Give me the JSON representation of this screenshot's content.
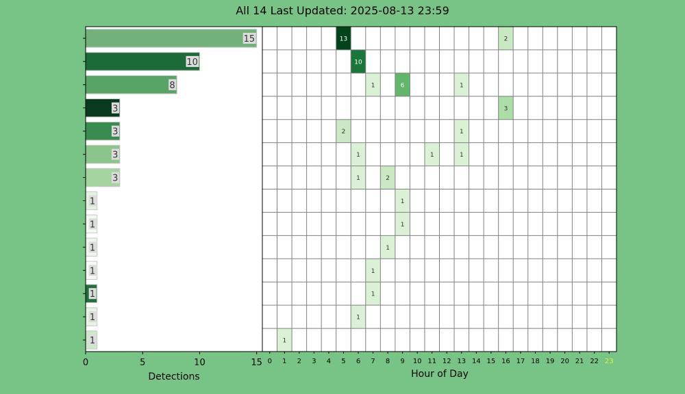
{
  "title": "All 14 Last Updated: 2025-08-13 23:59",
  "colors": {
    "background": "#77c486",
    "highlight_tick": "#d4f542",
    "grid": "#808080"
  },
  "chart_data": [
    {
      "type": "bar",
      "orientation": "horizontal",
      "xlabel": "Detections",
      "xlim": [
        0,
        15.5
      ],
      "xticks": [
        0,
        5,
        10,
        15
      ],
      "values": [
        15,
        10,
        8,
        3,
        3,
        3,
        3,
        1,
        1,
        1,
        1,
        1,
        1,
        1
      ],
      "bar_colors": [
        "#72b27a",
        "#1b6b39",
        "#58a466",
        "#083a1e",
        "#3a8b4f",
        "#8cc58c",
        "#a6d4a0",
        "#e4f3df",
        "#f3faf0",
        "#eef8ea",
        "#f5fbf2",
        "#1f6f3c",
        "#e8f5e4",
        "#cde9c7"
      ],
      "data_labels": [
        "15",
        "10",
        "8",
        "3",
        "3",
        "3",
        "3",
        "1",
        "1",
        "1",
        "1",
        "1",
        "1",
        "1"
      ]
    },
    {
      "type": "heatmap",
      "xlabel": "Hour of Day",
      "x": [
        0,
        1,
        2,
        3,
        4,
        5,
        6,
        7,
        8,
        9,
        10,
        11,
        12,
        13,
        14,
        15,
        16,
        17,
        18,
        19,
        20,
        21,
        22,
        23
      ],
      "x_tick_labels": [
        "0",
        "1",
        "2",
        "3",
        "4",
        "5",
        "6",
        "7",
        "8",
        "9",
        "10",
        "11",
        "12",
        "13",
        "14",
        "15",
        "16",
        "17",
        "18",
        "19",
        "20",
        "21",
        "22",
        "23"
      ],
      "highlighted_hour": 23,
      "rows": 14,
      "cells": [
        {
          "row": 0,
          "hour": 5,
          "value": 13
        },
        {
          "row": 0,
          "hour": 16,
          "value": 2
        },
        {
          "row": 1,
          "hour": 6,
          "value": 10
        },
        {
          "row": 2,
          "hour": 7,
          "value": 1
        },
        {
          "row": 2,
          "hour": 9,
          "value": 6
        },
        {
          "row": 2,
          "hour": 13,
          "value": 1
        },
        {
          "row": 3,
          "hour": 16,
          "value": 3
        },
        {
          "row": 4,
          "hour": 5,
          "value": 2
        },
        {
          "row": 4,
          "hour": 13,
          "value": 1
        },
        {
          "row": 5,
          "hour": 6,
          "value": 1
        },
        {
          "row": 5,
          "hour": 11,
          "value": 1
        },
        {
          "row": 5,
          "hour": 13,
          "value": 1
        },
        {
          "row": 6,
          "hour": 6,
          "value": 1
        },
        {
          "row": 6,
          "hour": 8,
          "value": 2
        },
        {
          "row": 7,
          "hour": 9,
          "value": 1
        },
        {
          "row": 8,
          "hour": 9,
          "value": 1
        },
        {
          "row": 9,
          "hour": 8,
          "value": 1
        },
        {
          "row": 10,
          "hour": 7,
          "value": 1
        },
        {
          "row": 11,
          "hour": 7,
          "value": 1
        },
        {
          "row": 12,
          "hour": 6,
          "value": 1
        },
        {
          "row": 13,
          "hour": 1,
          "value": 1
        }
      ]
    }
  ]
}
